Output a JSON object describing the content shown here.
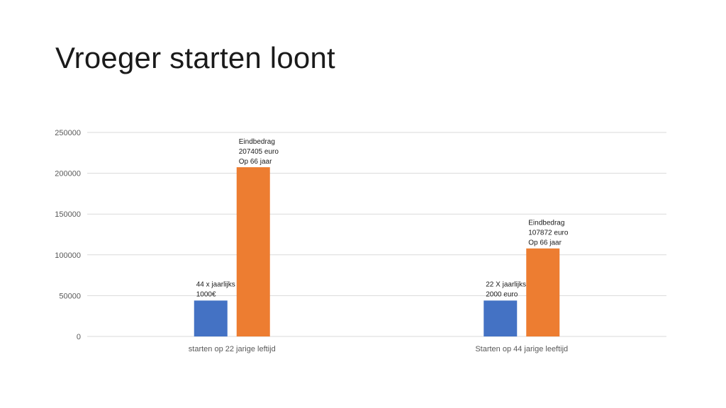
{
  "slide": {
    "title": "Vroeger starten loont"
  },
  "chart_data": {
    "type": "bar",
    "title": "",
    "xlabel": "",
    "ylabel": "",
    "categories": [
      "starten op 22 jarige leftijd",
      "Starten op 44 jarige leeftijd"
    ],
    "series": [
      {
        "color": "#4472c4",
        "values": [
          44000,
          44000
        ],
        "labels": [
          [
            "44 x jaarlijks",
            "1000€"
          ],
          [
            "22 X jaarlijks",
            "2000 euro"
          ]
        ]
      },
      {
        "color": "#ed7d31",
        "values": [
          207405,
          107872
        ],
        "labels": [
          [
            "Eindbedrag",
            "207405  euro",
            "Op 66 jaar"
          ],
          [
            "Eindbedrag",
            "107872  euro",
            "Op 66 jaar"
          ]
        ]
      }
    ],
    "ylim": [
      0,
      250000
    ],
    "yticks": [
      0,
      50000,
      100000,
      150000,
      200000,
      250000
    ],
    "grid": true,
    "legend": "none"
  }
}
